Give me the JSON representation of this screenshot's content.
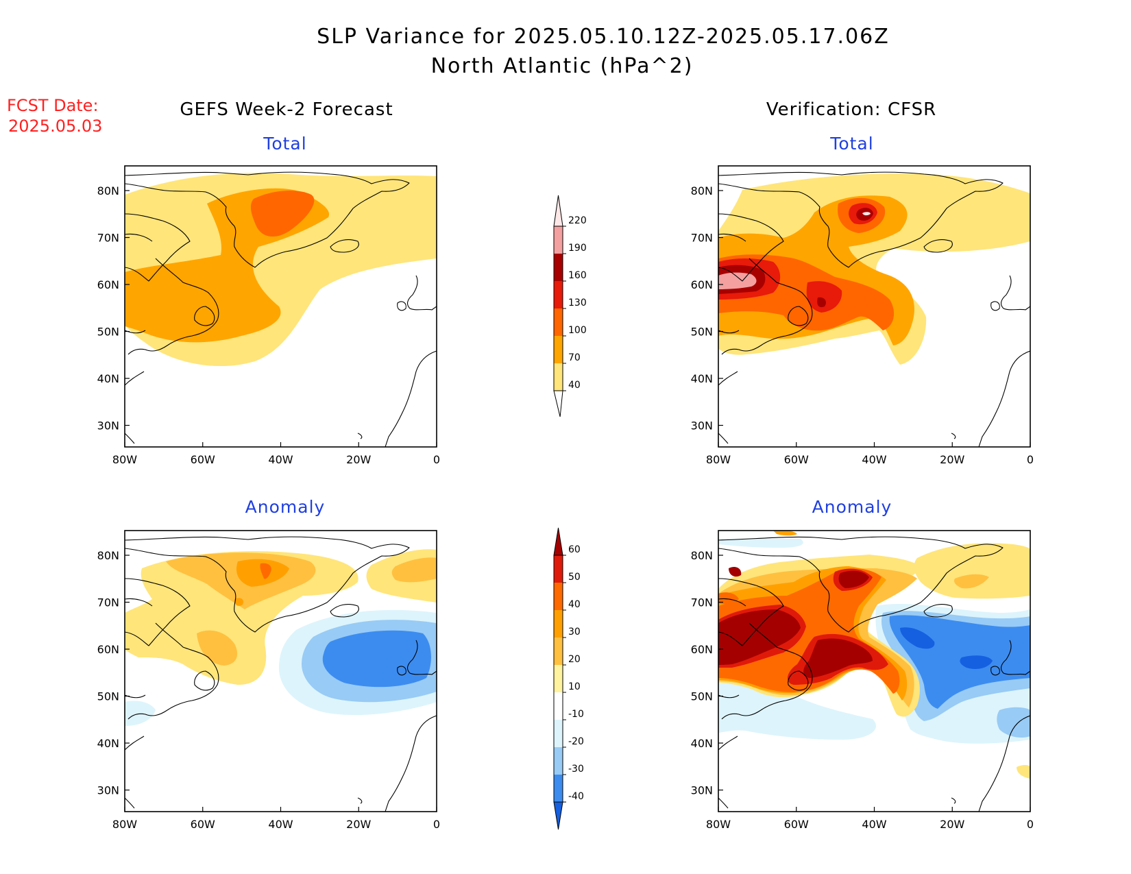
{
  "title_line1": "SLP Variance for 2025.05.10.12Z-2025.05.17.06Z",
  "title_line2": "North Atlantic (hPa^2)",
  "fcst_label": "FCST Date:",
  "fcst_date": "2025.05.03",
  "left_column_title": "GEFS Week-2 Forecast",
  "right_column_title": "Verification: CFSR",
  "panels": [
    {
      "title": "Total"
    },
    {
      "title": "Total"
    },
    {
      "title": "Anomaly"
    },
    {
      "title": "Anomaly"
    }
  ],
  "x_ticks": [
    "80W",
    "60W",
    "40W",
    "20W",
    "0"
  ],
  "y_ticks": [
    "80N",
    "70N",
    "60N",
    "50N",
    "40N",
    "30N"
  ],
  "total_colorbar": {
    "levels": [
      "40",
      "70",
      "100",
      "130",
      "160",
      "190",
      "220"
    ],
    "colors": [
      "#ffe57a",
      "#ffa500",
      "#ff6600",
      "#e81a0a",
      "#a80000",
      "#f4a0a0",
      "#fde7e7"
    ]
  },
  "anomaly_colorbar": {
    "levels": [
      "-40",
      "-30",
      "-20",
      "-10",
      "10",
      "20",
      "30",
      "40",
      "50",
      "60"
    ],
    "colors": [
      "#1560e0",
      "#3c8cf0",
      "#98cbf5",
      "#ddf4fc",
      "#ffffff",
      "#fff3a0",
      "#ffc040",
      "#ffa000",
      "#ff6a00",
      "#e01a0a",
      "#a50000"
    ]
  }
}
